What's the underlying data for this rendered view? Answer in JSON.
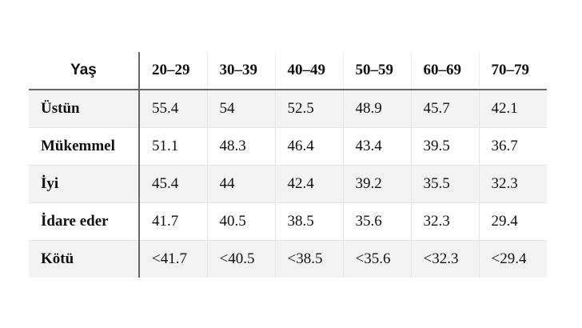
{
  "table": {
    "header": [
      "Yaş",
      "20–29",
      "30–39",
      "40–49",
      "50–59",
      "60–69",
      "70–79"
    ],
    "rows": [
      [
        "Üstün",
        55.4,
        54,
        52.5,
        48.9,
        45.7,
        42.1
      ],
      [
        "Mükemmel",
        51.1,
        48.3,
        46.4,
        43.4,
        39.5,
        36.7
      ],
      [
        "İyi",
        45.4,
        44,
        42.4,
        39.2,
        35.5,
        32.3
      ],
      [
        "İdare eder",
        41.7,
        40.5,
        38.5,
        35.6,
        32.3,
        29.4
      ],
      [
        "Kötü",
        "<41.7",
        "<40.5",
        "<38.5",
        "<35.6",
        "<32.3",
        "<29.4"
      ]
    ]
  }
}
